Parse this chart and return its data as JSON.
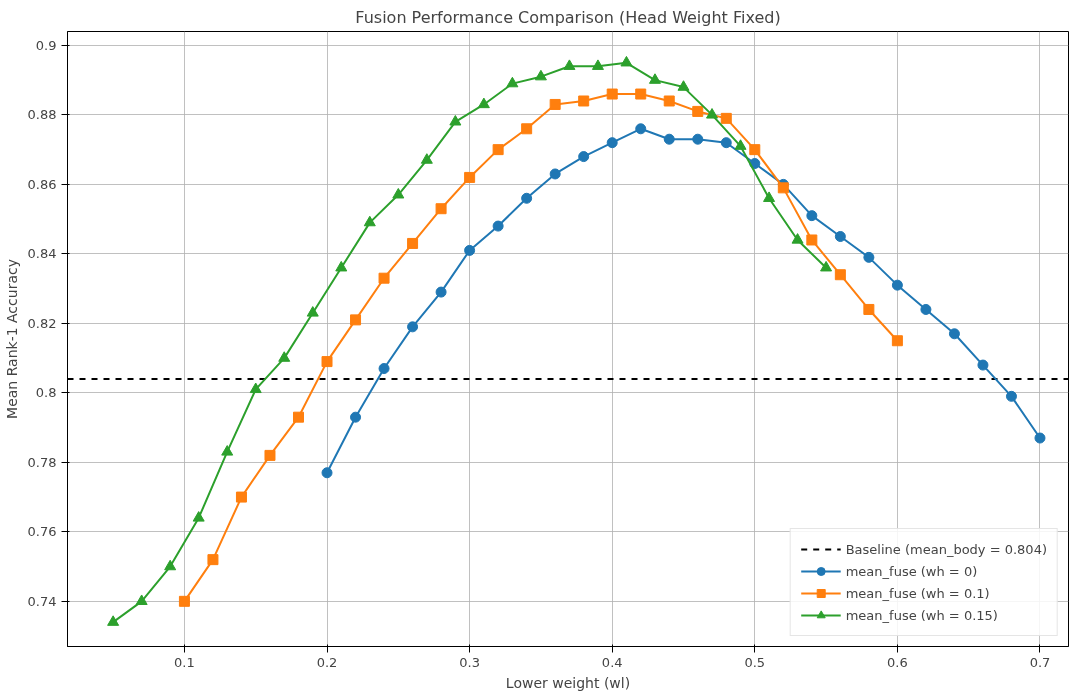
{
  "chart_data": {
    "type": "line",
    "title": "Fusion Performance Comparison (Head Weight Fixed)",
    "xlabel": "Lower weight (wl)",
    "ylabel": "Mean Rank-1 Accuracy",
    "xlim": [
      0.018,
      0.72
    ],
    "ylim": [
      0.727,
      0.904
    ],
    "xticks": [
      0.1,
      0.2,
      0.3,
      0.4,
      0.5,
      0.6,
      0.7
    ],
    "yticks": [
      0.74,
      0.76,
      0.78,
      0.8,
      0.82,
      0.84,
      0.86,
      0.88,
      0.9
    ],
    "grid": true,
    "legend": "bottom right",
    "line_style": "solid",
    "ref_lines": [
      {
        "axis": "y",
        "value": 0.804,
        "label": "Baseline (mean_body = 0.804)",
        "color": "#000000",
        "line_style": "dashed"
      }
    ],
    "series": [
      {
        "name": "mean_fuse (wh = 0)",
        "color": "#1f77b4",
        "marker": "circle",
        "x": [
          0.2,
          0.22,
          0.24,
          0.26,
          0.28,
          0.3,
          0.32,
          0.34,
          0.36,
          0.38,
          0.4,
          0.42,
          0.44,
          0.46,
          0.48,
          0.5,
          0.52,
          0.54,
          0.56,
          0.58,
          0.6,
          0.62,
          0.64,
          0.66,
          0.68,
          0.7
        ],
        "values": [
          0.777,
          0.793,
          0.807,
          0.819,
          0.829,
          0.841,
          0.848,
          0.856,
          0.863,
          0.868,
          0.872,
          0.876,
          0.873,
          0.873,
          0.872,
          0.866,
          0.86,
          0.851,
          0.845,
          0.839,
          0.831,
          0.824,
          0.817,
          0.808,
          0.799,
          0.787
        ]
      },
      {
        "name": "mean_fuse (wh = 0.1)",
        "color": "#ff7f0e",
        "marker": "square",
        "x": [
          0.1,
          0.12,
          0.14,
          0.16,
          0.18,
          0.2,
          0.22,
          0.24,
          0.26,
          0.28,
          0.3,
          0.32,
          0.34,
          0.36,
          0.38,
          0.4,
          0.42,
          0.44,
          0.46,
          0.48,
          0.5,
          0.52,
          0.54,
          0.56,
          0.58,
          0.6
        ],
        "values": [
          0.74,
          0.752,
          0.77,
          0.782,
          0.793,
          0.809,
          0.821,
          0.833,
          0.843,
          0.853,
          0.862,
          0.87,
          0.876,
          0.883,
          0.884,
          0.886,
          0.886,
          0.884,
          0.881,
          0.879,
          0.87,
          0.859,
          0.844,
          0.834,
          0.824,
          0.815
        ]
      },
      {
        "name": "mean_fuse (wh = 0.15)",
        "color": "#2ca02c",
        "marker": "triangle",
        "x": [
          0.05,
          0.07,
          0.09,
          0.11,
          0.13,
          0.15,
          0.17,
          0.19,
          0.21,
          0.23,
          0.25,
          0.27,
          0.29,
          0.31,
          0.33,
          0.35,
          0.37,
          0.39,
          0.41,
          0.43,
          0.45,
          0.47,
          0.49,
          0.51,
          0.53,
          0.55
        ],
        "values": [
          0.734,
          0.74,
          0.75,
          0.764,
          0.783,
          0.801,
          0.81,
          0.823,
          0.836,
          0.849,
          0.857,
          0.867,
          0.878,
          0.883,
          0.889,
          0.891,
          0.894,
          0.894,
          0.895,
          0.89,
          0.888,
          0.88,
          0.871,
          0.856,
          0.844,
          0.836
        ]
      }
    ]
  }
}
